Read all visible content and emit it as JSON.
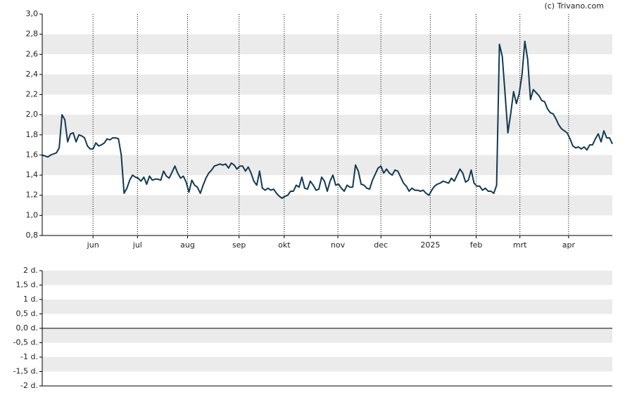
{
  "credit": "(c) Trivano.com",
  "chart_data": [
    {
      "type": "line",
      "ylim": [
        0.8,
        3.0
      ],
      "yticks": [
        {
          "value": 0.8,
          "label": "0,8"
        },
        {
          "value": 1.0,
          "label": "1,0"
        },
        {
          "value": 1.2,
          "label": "1,2"
        },
        {
          "value": 1.4,
          "label": "1,4"
        },
        {
          "value": 1.6,
          "label": "1,6"
        },
        {
          "value": 1.8,
          "label": "1,8"
        },
        {
          "value": 2.0,
          "label": "2,0"
        },
        {
          "value": 2.2,
          "label": "2,2"
        },
        {
          "value": 2.4,
          "label": "2,4"
        },
        {
          "value": 2.6,
          "label": "2,6"
        },
        {
          "value": 2.8,
          "label": "2,8"
        },
        {
          "value": 3.0,
          "label": "3,0"
        }
      ],
      "xlim": [
        0,
        202
      ],
      "xticks": [
        {
          "value": 18,
          "label": "jun"
        },
        {
          "value": 33.75,
          "label": "jul"
        },
        {
          "value": 51.5,
          "label": "aug"
        },
        {
          "value": 69.75,
          "label": "sep"
        },
        {
          "value": 85.75,
          "label": "okt"
        },
        {
          "value": 104.75,
          "label": "nov"
        },
        {
          "value": 120,
          "label": "dec"
        },
        {
          "value": 137.5,
          "label": "2025"
        },
        {
          "value": 153.75,
          "label": "feb"
        },
        {
          "value": 169.25,
          "label": "mrt"
        },
        {
          "value": 186.5,
          "label": "apr"
        }
      ],
      "color": "#123a52",
      "values": [
        1.6,
        1.59,
        1.58,
        1.6,
        1.61,
        1.62,
        1.67,
        2.0,
        1.95,
        1.73,
        1.81,
        1.82,
        1.73,
        1.8,
        1.79,
        1.77,
        1.69,
        1.66,
        1.66,
        1.72,
        1.69,
        1.7,
        1.72,
        1.76,
        1.75,
        1.77,
        1.77,
        1.76,
        1.6,
        1.22,
        1.27,
        1.35,
        1.4,
        1.38,
        1.37,
        1.34,
        1.38,
        1.31,
        1.39,
        1.35,
        1.36,
        1.36,
        1.35,
        1.44,
        1.39,
        1.37,
        1.43,
        1.49,
        1.42,
        1.37,
        1.39,
        1.33,
        1.23,
        1.35,
        1.3,
        1.28,
        1.22,
        1.3,
        1.37,
        1.42,
        1.45,
        1.49,
        1.5,
        1.51,
        1.5,
        1.51,
        1.47,
        1.52,
        1.5,
        1.46,
        1.49,
        1.49,
        1.44,
        1.48,
        1.42,
        1.34,
        1.3,
        1.44,
        1.27,
        1.25,
        1.27,
        1.25,
        1.26,
        1.22,
        1.19,
        1.17,
        1.19,
        1.2,
        1.24,
        1.24,
        1.3,
        1.28,
        1.38,
        1.27,
        1.26,
        1.34,
        1.3,
        1.25,
        1.26,
        1.38,
        1.34,
        1.24,
        1.34,
        1.4,
        1.3,
        1.31,
        1.27,
        1.24,
        1.3,
        1.28,
        1.28,
        1.5,
        1.44,
        1.31,
        1.3,
        1.27,
        1.26,
        1.35,
        1.41,
        1.47,
        1.49,
        1.42,
        1.46,
        1.42,
        1.4,
        1.45,
        1.44,
        1.38,
        1.32,
        1.29,
        1.24,
        1.27,
        1.25,
        1.25,
        1.24,
        1.25,
        1.22,
        1.2,
        1.25,
        1.29,
        1.31,
        1.32,
        1.34,
        1.33,
        1.32,
        1.37,
        1.34,
        1.4,
        1.46,
        1.42,
        1.33,
        1.35,
        1.45,
        1.32,
        1.29,
        1.29,
        1.25,
        1.27,
        1.24,
        1.24,
        1.22,
        1.3,
        2.7,
        2.58,
        2.21,
        1.82,
        2.01,
        2.23,
        2.11,
        2.21,
        2.4,
        2.73,
        2.55,
        2.15,
        2.25,
        2.22,
        2.19,
        2.14,
        2.13,
        2.06,
        2.02,
        2.01,
        1.96,
        1.9,
        1.86,
        1.84,
        1.82,
        1.76,
        1.69,
        1.67,
        1.68,
        1.66,
        1.68,
        1.65,
        1.7,
        1.7,
        1.76,
        1.81,
        1.73,
        1.84,
        1.77,
        1.77,
        1.71
      ],
      "grid": true
    },
    {
      "type": "line",
      "ylim": [
        -2,
        2
      ],
      "yticks": [
        {
          "value": -2,
          "label": "-2 d."
        },
        {
          "value": -1.5,
          "label": "-1,5 d."
        },
        {
          "value": -1,
          "label": "-1 d."
        },
        {
          "value": -0.5,
          "label": "-0,5 d."
        },
        {
          "value": 0,
          "label": "0,0 d."
        },
        {
          "value": 0.5,
          "label": "0,5 d."
        },
        {
          "value": 1,
          "label": "1 d."
        },
        {
          "value": 1.5,
          "label": "1,5 d."
        },
        {
          "value": 2,
          "label": "2 d."
        }
      ],
      "grid": true
    }
  ]
}
